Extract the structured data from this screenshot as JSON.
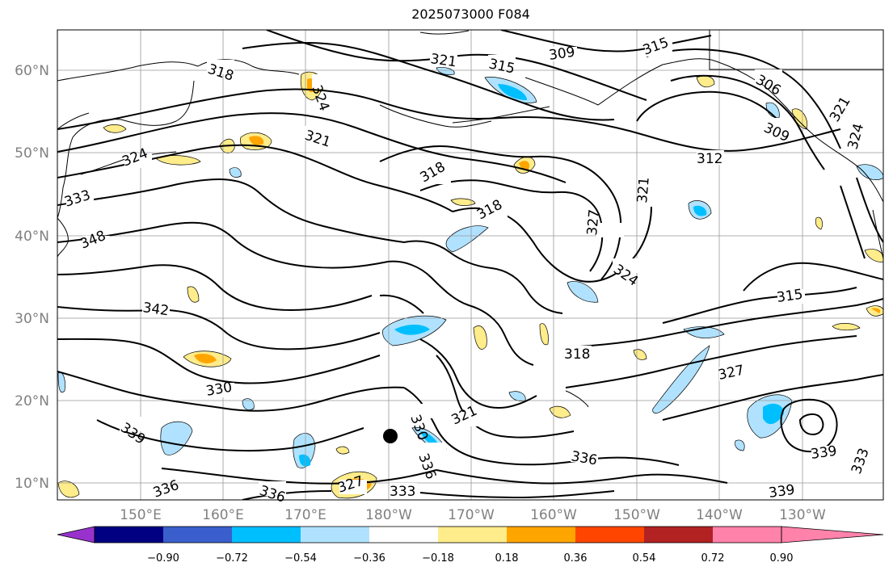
{
  "title": "2025073000 F084",
  "lat_labels": [
    "60°N",
    "50°N",
    "40°N",
    "30°N",
    "20°N",
    "10°N"
  ],
  "lon_labels": [
    "150°E",
    "160°E",
    "170°E",
    "180°W",
    "170°W",
    "160°W",
    "150°W",
    "140°W",
    "130°W"
  ],
  "colorbar": {
    "tick_labels": [
      "−0.90",
      "−0.72",
      "−0.54",
      "−0.36",
      "−0.18",
      "0.18",
      "0.36",
      "0.54",
      "0.72",
      "0.90"
    ],
    "colors": [
      "#9932cc",
      "#000080",
      "#3a5fcd",
      "#00bfff",
      "#b0e2ff",
      "#ffffff",
      "#ffec8b",
      "#ffa500",
      "#ff4500",
      "#b22222",
      "#ff82ab"
    ]
  },
  "contour_labels": [
    "318",
    "321",
    "315",
    "309",
    "315",
    "306",
    "324",
    "321",
    "309",
    "321",
    "324",
    "324",
    "318",
    "312",
    "333",
    "318",
    "321",
    "348",
    "327",
    "324",
    "342",
    "315",
    "318",
    "327",
    "330",
    "339",
    "321",
    "336",
    "339",
    "333",
    "339",
    "336",
    "327",
    "333",
    "336",
    "330",
    "336"
  ],
  "colors": {
    "positive_shade": "#ffec8b",
    "positive_core": "#ffa500",
    "negative_shade": "#b0e2ff",
    "negative_core": "#00bfff",
    "contour": "#000000"
  }
}
